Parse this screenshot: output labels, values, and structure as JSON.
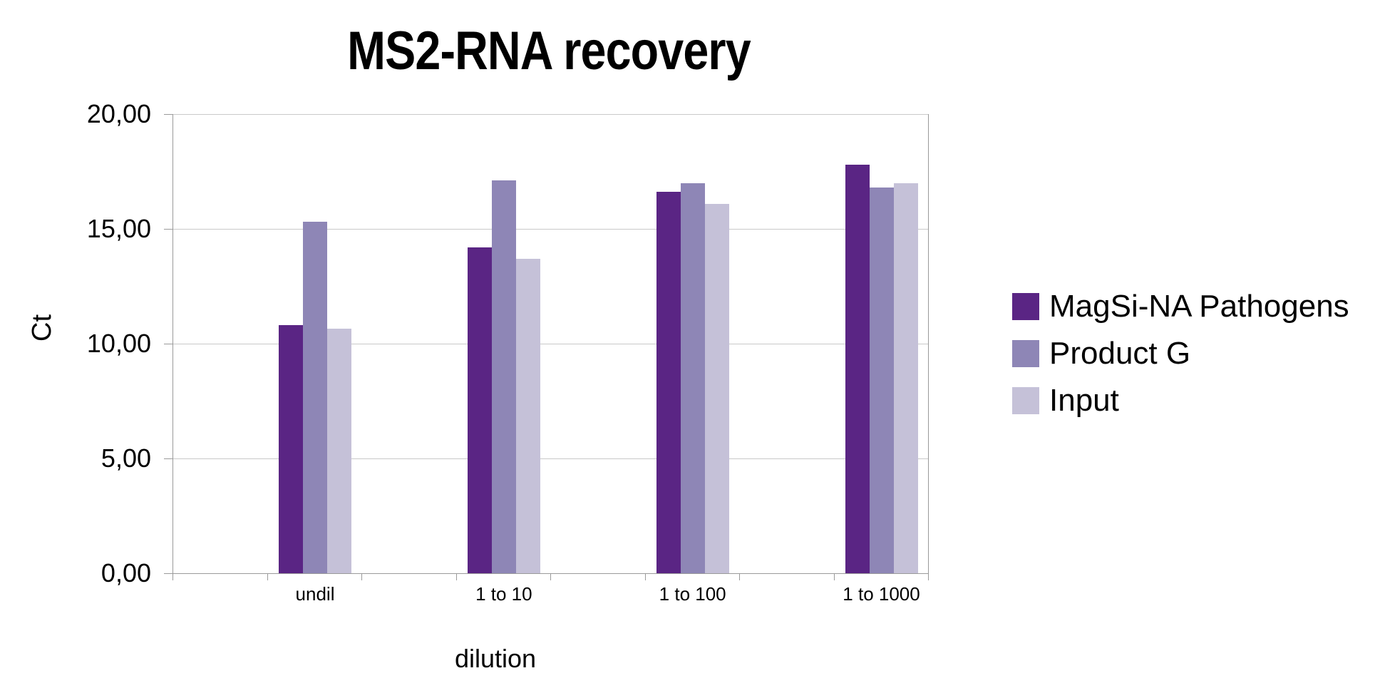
{
  "page_title": "MS2-RNA recovery",
  "chart_data": {
    "type": "bar",
    "title": "MS2-RNA recovery",
    "xlabel": "dilution",
    "ylabel": "Ct",
    "categories": [
      "undil",
      "1 to 10",
      "1 to 100",
      "1 to 1000"
    ],
    "series": [
      {
        "name": "MagSi-NA Pathogens",
        "color": "#5a2584",
        "textured": false,
        "values": [
          10.8,
          14.2,
          16.6,
          17.8
        ]
      },
      {
        "name": "Product G",
        "color": "#8e86b6",
        "textured": false,
        "values": [
          15.3,
          17.1,
          17.0,
          16.8
        ]
      },
      {
        "name": "Input",
        "color": "#c5c1d8",
        "textured": true,
        "values": [
          10.65,
          13.7,
          16.1,
          17.0
        ]
      }
    ],
    "ylim": [
      0,
      20
    ],
    "yticks": [
      {
        "value": 0,
        "label": "0,00"
      },
      {
        "value": 5,
        "label": "5,00"
      },
      {
        "value": 10,
        "label": "10,00"
      },
      {
        "value": 15,
        "label": "15,00"
      },
      {
        "value": 20,
        "label": "20,00"
      }
    ],
    "grid": true,
    "legend_position": "right",
    "decimal_separator": ","
  },
  "colors": {
    "background": "#ffffff",
    "gridline": "#c9c9c9",
    "axis_line": "#9a9a9a",
    "text": "#000000"
  }
}
